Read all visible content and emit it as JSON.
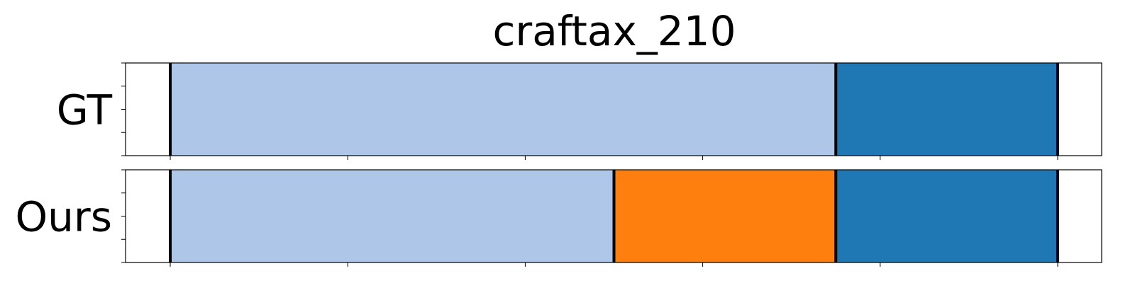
{
  "chart_data": {
    "type": "bar",
    "title": "craftax_210",
    "rows": [
      "GT",
      "Ours"
    ],
    "xlim": [
      0,
      10.5
    ],
    "x_ticks": [
      0,
      2,
      4,
      6,
      8,
      10
    ],
    "y_ticks_per_row": 5,
    "colors": {
      "light_blue": "#aec7e8",
      "orange": "#ff7f0e",
      "dark_blue": "#1f77b4",
      "boundary": "#000000"
    },
    "segments": [
      [
        {
          "start": 0,
          "end": 7.5,
          "color": "#aec7e8"
        },
        {
          "start": 7.5,
          "end": 10,
          "color": "#1f77b4"
        }
      ],
      [
        {
          "start": 0,
          "end": 5,
          "color": "#aec7e8"
        },
        {
          "start": 5,
          "end": 7.5,
          "color": "#ff7f0e"
        },
        {
          "start": 7.5,
          "end": 10,
          "color": "#1f77b4"
        }
      ]
    ]
  }
}
